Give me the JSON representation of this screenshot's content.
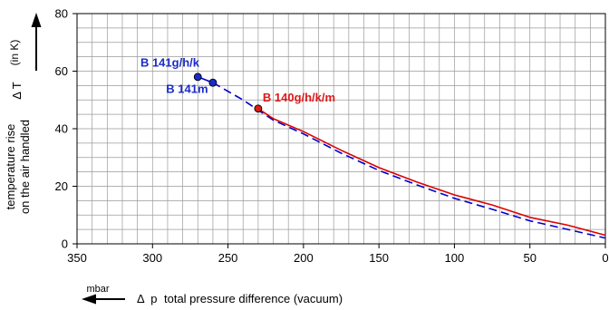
{
  "chart_data": {
    "type": "line",
    "ylabel": {
      "line1": "temperature rise",
      "line2": "on the air handled",
      "symbol": "Δ T",
      "unit": "(in K)"
    },
    "xlabel": {
      "unit": "mbar",
      "symbol": "Δ  p",
      "text": "total pressure difference (vacuum)"
    },
    "xlim": [
      350,
      0
    ],
    "ylim": [
      0,
      80
    ],
    "x_ticks": [
      350,
      300,
      250,
      200,
      150,
      100,
      50,
      0
    ],
    "y_ticks": [
      0,
      20,
      40,
      60,
      80
    ],
    "x_minor_step": 10,
    "y_minor_step": 5,
    "grid": true,
    "series": [
      {
        "name": "B 141g/h/k",
        "color": "#0000cc",
        "style": "dashed",
        "points": [
          [
            260,
            56
          ],
          [
            240,
            50
          ],
          [
            230,
            46.5
          ],
          [
            220,
            43
          ],
          [
            200,
            38.2
          ],
          [
            175,
            31.5
          ],
          [
            150,
            25.5
          ],
          [
            125,
            20.5
          ],
          [
            100,
            15.8
          ],
          [
            75,
            12
          ],
          [
            50,
            8
          ],
          [
            25,
            5
          ],
          [
            0,
            2
          ]
        ]
      },
      {
        "name": "B 141m",
        "color": "#0000cc",
        "style": "solid",
        "points": [
          [
            270,
            58
          ],
          [
            260,
            56
          ]
        ]
      },
      {
        "name": "B 140g/h/k/m",
        "color": "#dd0000",
        "style": "solid",
        "points": [
          [
            230,
            47
          ],
          [
            220,
            43.5
          ],
          [
            200,
            39
          ],
          [
            175,
            32.5
          ],
          [
            150,
            26.5
          ],
          [
            125,
            21.5
          ],
          [
            100,
            17
          ],
          [
            75,
            13.5
          ],
          [
            50,
            9.2
          ],
          [
            25,
            6.5
          ],
          [
            0,
            3
          ]
        ]
      }
    ],
    "markers": [
      {
        "series": "B 141g/h/k",
        "x": 270,
        "y": 58,
        "color": "#1a2cc8"
      },
      {
        "series": "B 141m",
        "x": 260,
        "y": 56,
        "color": "#1a2cc8"
      },
      {
        "series": "B 140g/h/k/m",
        "x": 230,
        "y": 47,
        "color": "#dd1a1a"
      }
    ],
    "annotations": [
      {
        "text": "B 141g/h/k",
        "color": "#1a2cc8",
        "x": 308,
        "y": 61.5
      },
      {
        "text": "B 141m",
        "color": "#1a2cc8",
        "x": 291,
        "y": 52.5
      },
      {
        "text": "B 140g/h/k/m",
        "color": "#dd1a1a",
        "x": 227,
        "y": 49.5
      }
    ]
  }
}
